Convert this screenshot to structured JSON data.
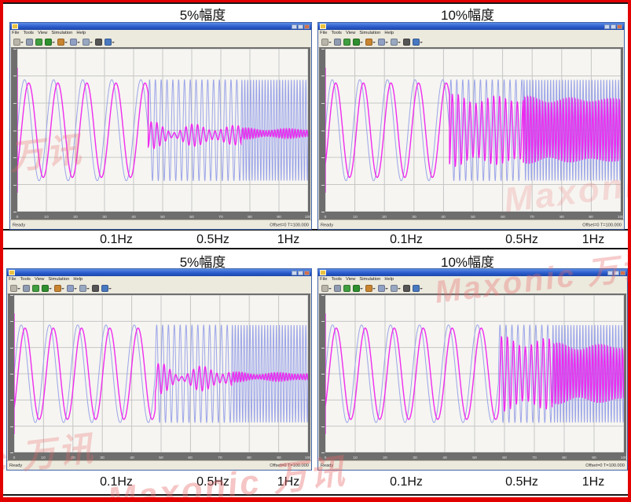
{
  "annotations": {
    "top": {
      "left_title": "5%幅度",
      "right_title": "10%幅度",
      "left_freqs": [
        "0.1Hz",
        "0.5Hz",
        "1Hz"
      ],
      "right_freqs": [
        "0.1Hz",
        "0.5Hz",
        "1Hz"
      ]
    },
    "bottom": {
      "left_title": "5%幅度",
      "right_title": "10%幅度",
      "left_freqs": [
        "0.1Hz",
        "0.5Hz",
        "1Hz"
      ],
      "right_freqs": [
        "0.1Hz",
        "0.5Hz",
        "1Hz"
      ]
    }
  },
  "watermark": {
    "text": "Maxonic 万讯",
    "color": "#e86868"
  },
  "window_chrome": {
    "menu": [
      "File",
      "Tools",
      "View",
      "Simulation",
      "Help"
    ],
    "status_left": "Ready",
    "status_right": "Offset=0 T=100.000",
    "titlebar_buttons": [
      "minimize",
      "maximize",
      "close"
    ],
    "toolbar_icons": [
      {
        "name": "print-icon",
        "color": "#b9b5aa",
        "dropdown": true
      },
      {
        "name": "parameters-icon",
        "color": "#8f9bb0",
        "dropdown": false
      },
      {
        "name": "zoom-icon",
        "color": "#3f9e3f",
        "dropdown": false
      },
      {
        "name": "zoom-x-icon",
        "color": "#2e8f2e",
        "dropdown": true
      },
      {
        "name": "zoom-y-icon",
        "color": "#c88430",
        "dropdown": true
      },
      {
        "name": "autoscale-icon",
        "color": "#90a0c4",
        "dropdown": true
      },
      {
        "name": "save-axes-icon",
        "color": "#98a8c0",
        "dropdown": true
      },
      {
        "name": "pen-icon",
        "color": "#555555",
        "dropdown": false
      },
      {
        "name": "floating-scope-icon",
        "color": "#4878c0",
        "dropdown": true
      }
    ]
  },
  "colors": {
    "reference_wave": "#97a0e8",
    "response_wave": "#ee22ee",
    "plot_bg": "#f6f5f1",
    "grid": "#c6c6c6",
    "frame": "#6e6e6e",
    "chrome": "#ece9dd",
    "titlebar_blue": "#2a5bcb",
    "border_red": "#e20000",
    "rule_black": "#161616"
  },
  "chart_data": [
    {
      "type": "line",
      "position": "top-left",
      "title": "5%幅度",
      "x_range": [
        0,
        100
      ],
      "x_ticks": [
        "0",
        "10",
        "20",
        "30",
        "40",
        "50",
        "60",
        "70",
        "80",
        "90",
        "100"
      ],
      "grid": {
        "x_divisions": 10,
        "y_divisions": 6
      },
      "series": [
        {
          "name": "reference sine (input)",
          "color_key": "reference_wave"
        },
        {
          "name": "response (output)",
          "color_key": "response_wave"
        }
      ],
      "sweep_segments": [
        {
          "t0": 0,
          "t1": 45,
          "freq_label": "0.1Hz",
          "freq_hz": 0.1,
          "ref_amp": 0.31,
          "resp_amp": 0.29,
          "resp_lag_rad": 0.9,
          "wobble": 0,
          "resp_center": 0.5
        },
        {
          "t0": 45,
          "t1": 77,
          "freq_label": "0.5Hz",
          "freq_hz": 0.5,
          "ref_amp": 0.31,
          "resp_amp": 0.045,
          "resp_lag_rad": 1.6,
          "wobble": 0.9,
          "resp_center": 0.53
        },
        {
          "t0": 77,
          "t1": 100,
          "freq_label": "1Hz",
          "freq_hz": 1.0,
          "ref_amp": 0.31,
          "resp_amp": 0.025,
          "resp_lag_rad": 1.8,
          "wobble": 0.4,
          "resp_center": 0.52
        }
      ]
    },
    {
      "type": "line",
      "position": "top-right",
      "title": "10%幅度",
      "x_range": [
        0,
        100
      ],
      "x_ticks": [
        "0",
        "10",
        "20",
        "30",
        "40",
        "50",
        "60",
        "70",
        "80",
        "90",
        "100"
      ],
      "grid": {
        "x_divisions": 10,
        "y_divisions": 6
      },
      "series": [
        {
          "name": "reference sine (input)",
          "color_key": "reference_wave"
        },
        {
          "name": "response (output)",
          "color_key": "response_wave"
        }
      ],
      "sweep_segments": [
        {
          "t0": 0,
          "t1": 42,
          "freq_label": "0.1Hz",
          "freq_hz": 0.107,
          "ref_amp": 0.31,
          "resp_amp": 0.29,
          "resp_lag_rad": 0.8,
          "wobble": 0,
          "resp_center": 0.5
        },
        {
          "t0": 42,
          "t1": 67,
          "freq_label": "0.5Hz",
          "freq_hz": 0.5,
          "ref_amp": 0.31,
          "resp_amp": 0.19,
          "resp_lag_rad": 1.5,
          "wobble": 0.18,
          "resp_center": 0.5
        },
        {
          "t0": 67,
          "t1": 100,
          "freq_label": "1Hz",
          "freq_hz": 1.0,
          "ref_amp": 0.31,
          "resp_amp": 0.185,
          "resp_lag_rad": 1.8,
          "wobble": 0.12,
          "resp_center": 0.5
        }
      ]
    },
    {
      "type": "line",
      "position": "bottom-left",
      "title": "5%幅度",
      "x_range": [
        0,
        100
      ],
      "x_ticks": [
        "0",
        "10",
        "20",
        "30",
        "40",
        "50",
        "60",
        "70",
        "80",
        "90",
        "100"
      ],
      "grid": {
        "x_divisions": 10,
        "y_divisions": 6
      },
      "series": [
        {
          "name": "reference sine (input)",
          "color_key": "reference_wave"
        },
        {
          "name": "response (output)",
          "color_key": "response_wave"
        }
      ],
      "sweep_segments": [
        {
          "t0": 0,
          "t1": 48,
          "freq_label": "0.1Hz",
          "freq_hz": 0.104,
          "ref_amp": 0.31,
          "resp_amp": 0.29,
          "resp_lag_rad": 0.85,
          "wobble": 0,
          "resp_center": 0.5
        },
        {
          "t0": 48,
          "t1": 74,
          "freq_label": "0.5Hz",
          "freq_hz": 0.5,
          "ref_amp": 0.31,
          "resp_amp": 0.05,
          "resp_lag_rad": 1.6,
          "wobble": 1.0,
          "resp_center": 0.53
        },
        {
          "t0": 74,
          "t1": 100,
          "freq_label": "1Hz",
          "freq_hz": 1.0,
          "ref_amp": 0.31,
          "resp_amp": 0.022,
          "resp_lag_rad": 1.8,
          "wobble": 0.5,
          "resp_center": 0.52
        }
      ]
    },
    {
      "type": "line",
      "position": "bottom-right",
      "title": "10%幅度",
      "x_range": [
        0,
        100
      ],
      "x_ticks": [
        "0",
        "10",
        "20",
        "30",
        "40",
        "50",
        "60",
        "70",
        "80",
        "90",
        "100"
      ],
      "grid": {
        "x_divisions": 10,
        "y_divisions": 6
      },
      "series": [
        {
          "name": "reference sine (input)",
          "color_key": "reference_wave"
        },
        {
          "name": "response (output)",
          "color_key": "response_wave"
        }
      ],
      "sweep_segments": [
        {
          "t0": 0,
          "t1": 58,
          "freq_label": "0.1Hz",
          "freq_hz": 0.103,
          "ref_amp": 0.31,
          "resp_amp": 0.29,
          "resp_lag_rad": 0.8,
          "wobble": 0,
          "resp_center": 0.5
        },
        {
          "t0": 58,
          "t1": 76,
          "freq_label": "0.5Hz",
          "freq_hz": 0.5,
          "ref_amp": 0.31,
          "resp_amp": 0.2,
          "resp_lag_rad": 1.5,
          "wobble": 0.2,
          "resp_center": 0.5
        },
        {
          "t0": 76,
          "t1": 100,
          "freq_label": "1Hz",
          "freq_hz": 1.0,
          "ref_amp": 0.31,
          "resp_amp": 0.17,
          "resp_lag_rad": 1.8,
          "wobble": 0.15,
          "resp_center": 0.5
        }
      ]
    }
  ]
}
